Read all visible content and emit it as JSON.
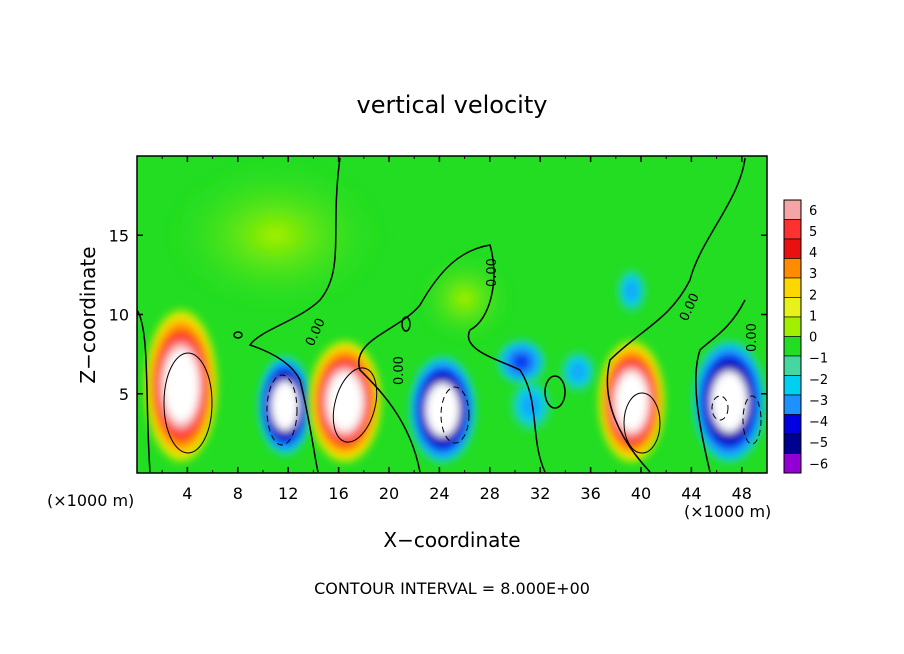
{
  "chart_data": {
    "type": "heatmap",
    "title": "vertical velocity",
    "xlabel": "X−coordinate",
    "ylabel": "Z−coordinate",
    "x_unit_left": "(×1000 m)",
    "x_unit_right": "(×1000 m)",
    "footer": "CONTOUR INTERVAL = 8.000E+00",
    "xlim": [
      0,
      50
    ],
    "ylim": [
      0,
      20
    ],
    "x_ticks": [
      4,
      8,
      12,
      16,
      20,
      24,
      28,
      32,
      36,
      40,
      44,
      48
    ],
    "x_tick_labels": [
      "4",
      "8",
      "12",
      "16",
      "20",
      "24",
      "28",
      "32",
      "36",
      "40",
      "44",
      "48"
    ],
    "y_ticks": [
      5,
      10,
      15
    ],
    "y_tick_labels": [
      "5",
      "10",
      "15"
    ],
    "zero_contour_labels": [
      "0.00",
      "0.00",
      "0.00",
      "0.00",
      "0.00"
    ],
    "colorbar": {
      "levels": [
        6,
        5,
        4,
        3,
        2,
        1,
        0,
        -1,
        -2,
        -3,
        -4,
        -5,
        -6
      ],
      "labels": [
        "6",
        "5",
        "4",
        "3",
        "2",
        "1",
        "0",
        "−1",
        "−2",
        "−3",
        "−4",
        "−5",
        "−6"
      ],
      "colors": [
        "#f4a5a5",
        "#ff3030",
        "#e81010",
        "#ff8c00",
        "#ffd700",
        "#e6f21a",
        "#a0f000",
        "#22dd22",
        "#44d8a0",
        "#00d0f0",
        "#1e90ff",
        "#0000e0",
        "#000090",
        "#9400d3"
      ]
    },
    "cells": [
      {
        "x": [
          0.5,
          6.5
        ],
        "z": [
          0.5,
          10.5
        ],
        "v": 6
      },
      {
        "x": [
          9.5,
          14
        ],
        "z": [
          1,
          7.5
        ],
        "v": -6
      },
      {
        "x": [
          13.5,
          19.5
        ],
        "z": [
          0.5,
          8.5
        ],
        "v": 6
      },
      {
        "x": [
          21.5,
          27
        ],
        "z": [
          0.5,
          7.5
        ],
        "v": -6
      },
      {
        "x": [
          28.5,
          32.5
        ],
        "z": [
          5.5,
          8.5
        ],
        "v": -4
      },
      {
        "x": [
          29.5,
          33
        ],
        "z": [
          2.5,
          6
        ],
        "v": -1.5
      },
      {
        "x": [
          33.5,
          36.5
        ],
        "z": [
          5,
          7.8
        ],
        "v": -3
      },
      {
        "x": [
          36.5,
          42
        ],
        "z": [
          0.5,
          8.5
        ],
        "v": 6
      },
      {
        "x": [
          44,
          50
        ],
        "z": [
          0.5,
          8.5
        ],
        "v": -6
      },
      {
        "x": [
          38,
          40.5
        ],
        "z": [
          10,
          13
        ],
        "v": -2
      },
      {
        "x": [
          2,
          20
        ],
        "z": [
          10,
          20
        ],
        "v": 1
      },
      {
        "x": [
          22,
          30
        ],
        "z": [
          8,
          14
        ],
        "v": 1
      }
    ]
  }
}
